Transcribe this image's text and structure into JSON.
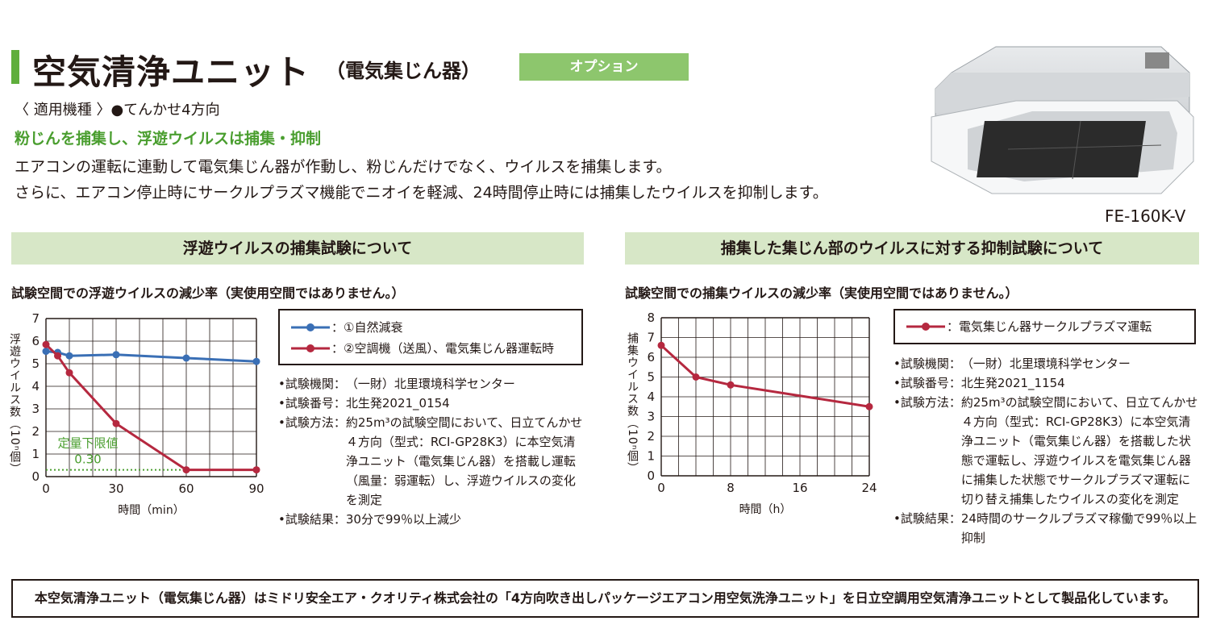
{
  "header": {
    "title": "空気清浄ユニット",
    "title_sub": "（電気集じん器）",
    "option_badge": "オプション",
    "applicable_label": "〈 適用機種 〉",
    "applicable_value": "●てんかせ4方向",
    "tagline": "粉じんを捕集し、浮遊ウイルスは捕集・抑制",
    "desc_line1": "エアコンの運転に連動して電気集じん器が作動し、粉じんだけでなく、ウイルスを捕集します。",
    "desc_line2": "さらに、エアコン停止時にサークルプラズマ機能でニオイを軽減、24時間停止時には捕集したウイルスを抑制します。",
    "model": "FE-160K-V"
  },
  "left_section": {
    "heading": "浮遊ウイルスの捕集試験について",
    "chart_title": "試験空間での浮遊ウイルスの減少率（実使用空間ではありません。）",
    "legend": [
      {
        "marker_color": "#3a6fb5",
        "label": "：①自然減衰"
      },
      {
        "marker_color": "#b5283f",
        "label": "：②空調機（送風）、電気集じん器運転時"
      }
    ],
    "threshold_label": "定量下限値",
    "threshold_value_label": "0.30",
    "info": [
      {
        "label": "•試験機関：",
        "value": "（一財）北里環境科学センター"
      },
      {
        "label": "•試験番号：",
        "value": "北生発2021_0154"
      },
      {
        "label": "•試験方法：",
        "value": "約25m³の試験空間において、日立てんかせ４方向（型式：RCI-GP28K3）に本空気清浄ユニット（電気集じん器）を搭載し運転（風量：弱運転）し、浮遊ウイルスの変化を測定"
      },
      {
        "label": "•試験結果：",
        "value": "30分で99％以上減少"
      }
    ]
  },
  "right_section": {
    "heading": "捕集した集じん部のウイルスに対する抑制試験について",
    "chart_title": "試験空間での捕集ウイルスの減少率（実使用空間ではありません。）",
    "legend": [
      {
        "marker_color": "#b5283f",
        "label": "：電気集じん器サークルプラズマ運転"
      }
    ],
    "info": [
      {
        "label": "•試験機関：",
        "value": "（一財）北里環境科学センター"
      },
      {
        "label": "•試験番号：",
        "value": "北生発2021_1154"
      },
      {
        "label": "•試験方法：",
        "value": "約25m³の試験空間において、日立てんかせ４方向（型式：RCI-GP28K3）に本空気清浄ユニット（電気集じん器）を搭載した状態で運転し、浮遊ウイルスを電気集じん器に捕集した状態でサークルプラズマ運転に切り替え捕集したウイルスの変化を測定"
      },
      {
        "label": "•試験結果：",
        "value": "24時間のサークルプラズマ稼働で99％以上抑制"
      }
    ]
  },
  "footer": {
    "text": "本空気清浄ユニット（電気集じん器）はミドリ安全エア・クオリティ株式会社の「4方向吹き出しパッケージエアコン用空気洗浄ユニット」を日立空調用空気清浄ユニットとして製品化しています。"
  },
  "chart_data": [
    {
      "type": "line",
      "title": "試験空間での浮遊ウイルスの減少率（実使用空間ではありません。）",
      "xlabel": "時間（min）",
      "ylabel": "浮遊ウイルス数（10ⁿ個）",
      "xlim": [
        0,
        90
      ],
      "ylim": [
        0,
        7
      ],
      "xticks": [
        0,
        30,
        60,
        90
      ],
      "yticks": [
        0,
        1,
        2,
        3,
        4,
        5,
        6,
        7
      ],
      "grid": true,
      "threshold": 0.3,
      "series": [
        {
          "name": "①自然減衰",
          "color": "#3a6fb5",
          "x": [
            0,
            5,
            10,
            30,
            60,
            90
          ],
          "y": [
            5.55,
            5.5,
            5.35,
            5.4,
            5.25,
            5.1
          ]
        },
        {
          "name": "②空調機（送風）、電気集じん器運転時",
          "color": "#b5283f",
          "x": [
            0,
            5,
            10,
            30,
            60,
            90
          ],
          "y": [
            5.85,
            5.35,
            4.6,
            2.35,
            0.3,
            0.3
          ]
        }
      ]
    },
    {
      "type": "line",
      "title": "試験空間での捕集ウイルスの減少率（実使用空間ではありません。）",
      "xlabel": "時間（h）",
      "ylabel": "捕集ウイルス数（10ⁿ個）",
      "xlim": [
        0,
        24
      ],
      "ylim": [
        0,
        8
      ],
      "xticks": [
        0,
        8,
        16,
        24
      ],
      "yticks": [
        0,
        1,
        2,
        3,
        4,
        5,
        6,
        7,
        8
      ],
      "grid": true,
      "series": [
        {
          "name": "電気集じん器サークルプラズマ運転",
          "color": "#b5283f",
          "x": [
            0,
            4,
            8,
            24
          ],
          "y": [
            6.6,
            5.0,
            4.6,
            3.5
          ]
        }
      ]
    }
  ]
}
